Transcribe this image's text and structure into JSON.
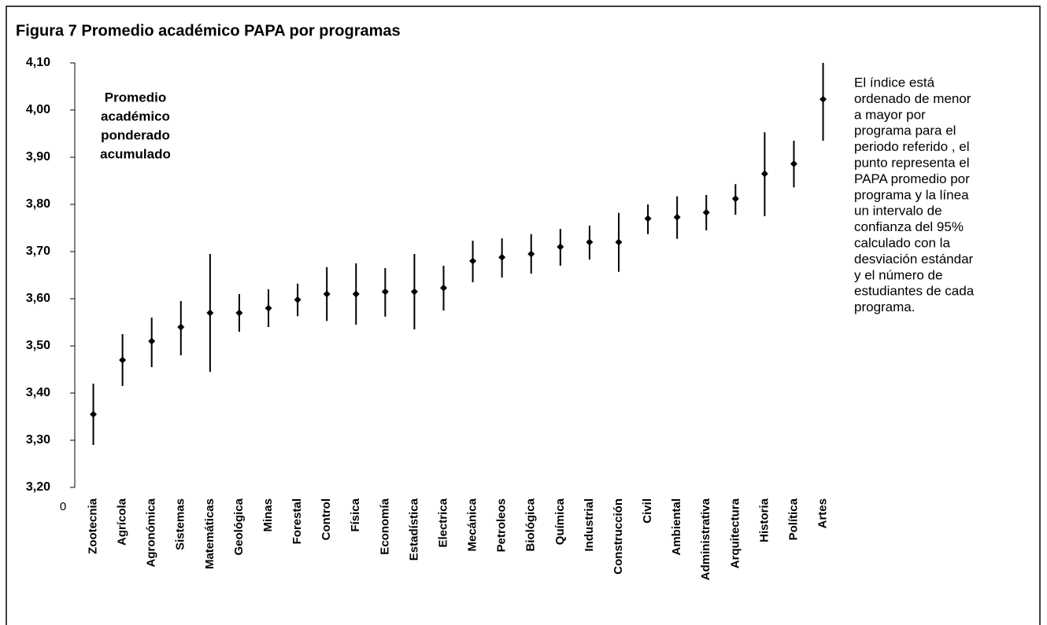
{
  "chart_data": {
    "type": "errorbar",
    "title": "Figura 7 Promedio académico PAPA por programas",
    "ylabel": [
      "Promedio",
      "académico",
      "ponderado",
      "acumulado"
    ],
    "origin_label": "0",
    "note": [
      "El índice está",
      "ordenado de menor",
      "a mayor por",
      "programa para el",
      "periodo referido , el",
      "punto representa  el",
      "PAPA promedio por",
      "programa y la línea",
      "un intervalo de",
      "confianza del 95%",
      "calculado con la",
      "desviación estándar",
      "y el número de",
      "estudiantes de cada",
      "programa."
    ],
    "categories": [
      "Zootecnia",
      "Agrícola",
      "Agronómica",
      "Sistemas",
      "Matemáticas",
      "Geológica",
      "Minas",
      "Forestal",
      "Control",
      "Física",
      "Economía",
      "Estadística",
      "Electrica",
      "Mecánica",
      "Petroleos",
      "Biológica",
      "Química",
      "Industrial",
      "Construcción",
      "Civil",
      "Ambiental",
      "Administrativa",
      "Arquitectura",
      "Historia",
      "Política",
      "Artes"
    ],
    "color": "#000000",
    "values": [
      3.355,
      3.47,
      3.51,
      3.54,
      3.57,
      3.57,
      3.58,
      3.598,
      3.61,
      3.61,
      3.615,
      3.615,
      3.623,
      3.68,
      3.688,
      3.695,
      3.71,
      3.72,
      3.72,
      3.77,
      3.773,
      3.783,
      3.812,
      3.865,
      3.886,
      4.023
    ],
    "low": [
      3.29,
      3.415,
      3.455,
      3.48,
      3.445,
      3.53,
      3.54,
      3.563,
      3.553,
      3.545,
      3.562,
      3.535,
      3.575,
      3.635,
      3.645,
      3.653,
      3.67,
      3.683,
      3.657,
      3.737,
      3.727,
      3.745,
      3.778,
      3.775,
      3.836,
      3.935
    ],
    "high": [
      3.42,
      3.525,
      3.56,
      3.595,
      3.695,
      3.61,
      3.62,
      3.632,
      3.667,
      3.675,
      3.665,
      3.695,
      3.67,
      3.723,
      3.728,
      3.737,
      3.748,
      3.755,
      3.782,
      3.8,
      3.817,
      3.82,
      3.843,
      3.953,
      3.935,
      4.1
    ],
    "ylim": [
      3.2,
      4.1
    ],
    "yticks": [
      {
        "value": 3.2,
        "label": "3,20"
      },
      {
        "value": 3.3,
        "label": "3,30"
      },
      {
        "value": 3.4,
        "label": "3,40"
      },
      {
        "value": 3.5,
        "label": "3,50"
      },
      {
        "value": 3.6,
        "label": "3,60"
      },
      {
        "value": 3.7,
        "label": "3,70"
      },
      {
        "value": 3.8,
        "label": "3,80"
      },
      {
        "value": 3.9,
        "label": "3,90"
      },
      {
        "value": 4.0,
        "label": "4,00"
      },
      {
        "value": 4.1,
        "label": "4,10"
      }
    ]
  }
}
